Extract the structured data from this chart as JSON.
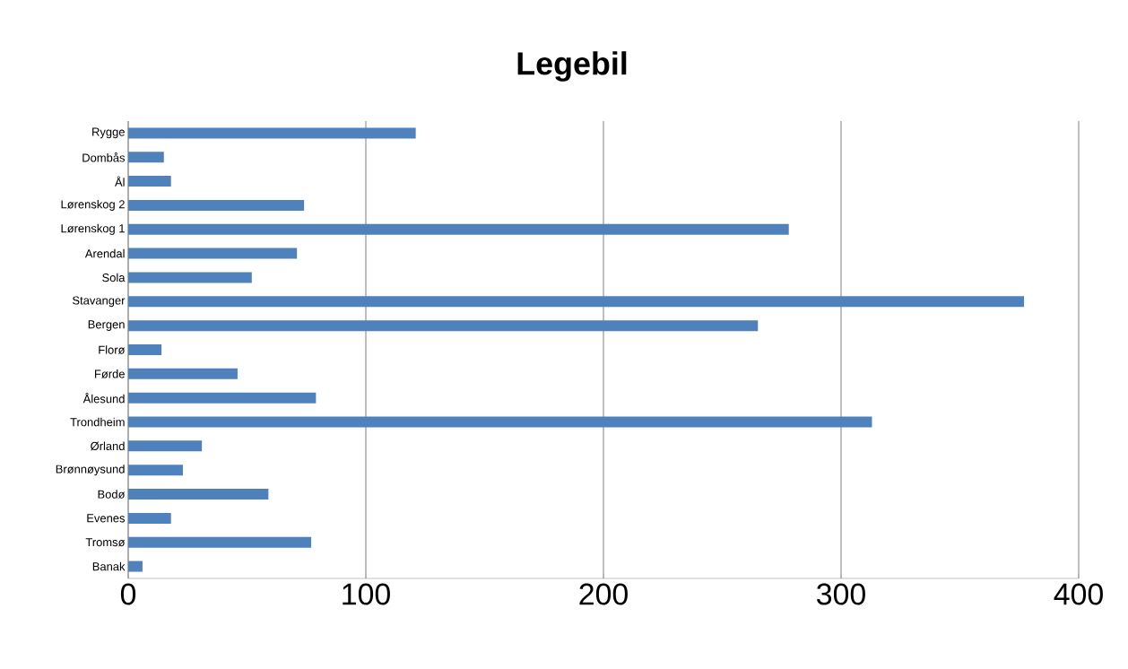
{
  "chart_data": {
    "type": "bar",
    "orientation": "horizontal",
    "title": "Legebil",
    "categories": [
      "Rygge",
      "Dombås",
      "Ål",
      "Lørenskog 2",
      "Lørenskog 1",
      "Arendal",
      "Sola",
      "Stavanger",
      "Bergen",
      "Florø",
      "Førde",
      "Ålesund",
      "Trondheim",
      "Ørland",
      "Brønnøysund",
      "Bodø",
      "Evenes",
      "Tromsø",
      "Banak"
    ],
    "values": [
      121,
      15,
      18,
      74,
      278,
      71,
      52,
      377,
      265,
      14,
      46,
      79,
      313,
      31,
      23,
      59,
      18,
      77,
      6
    ],
    "color": "#4f81bd",
    "xlim": [
      0,
      400
    ],
    "xticks": [
      0,
      100,
      200,
      300,
      400
    ],
    "grid": "x"
  }
}
